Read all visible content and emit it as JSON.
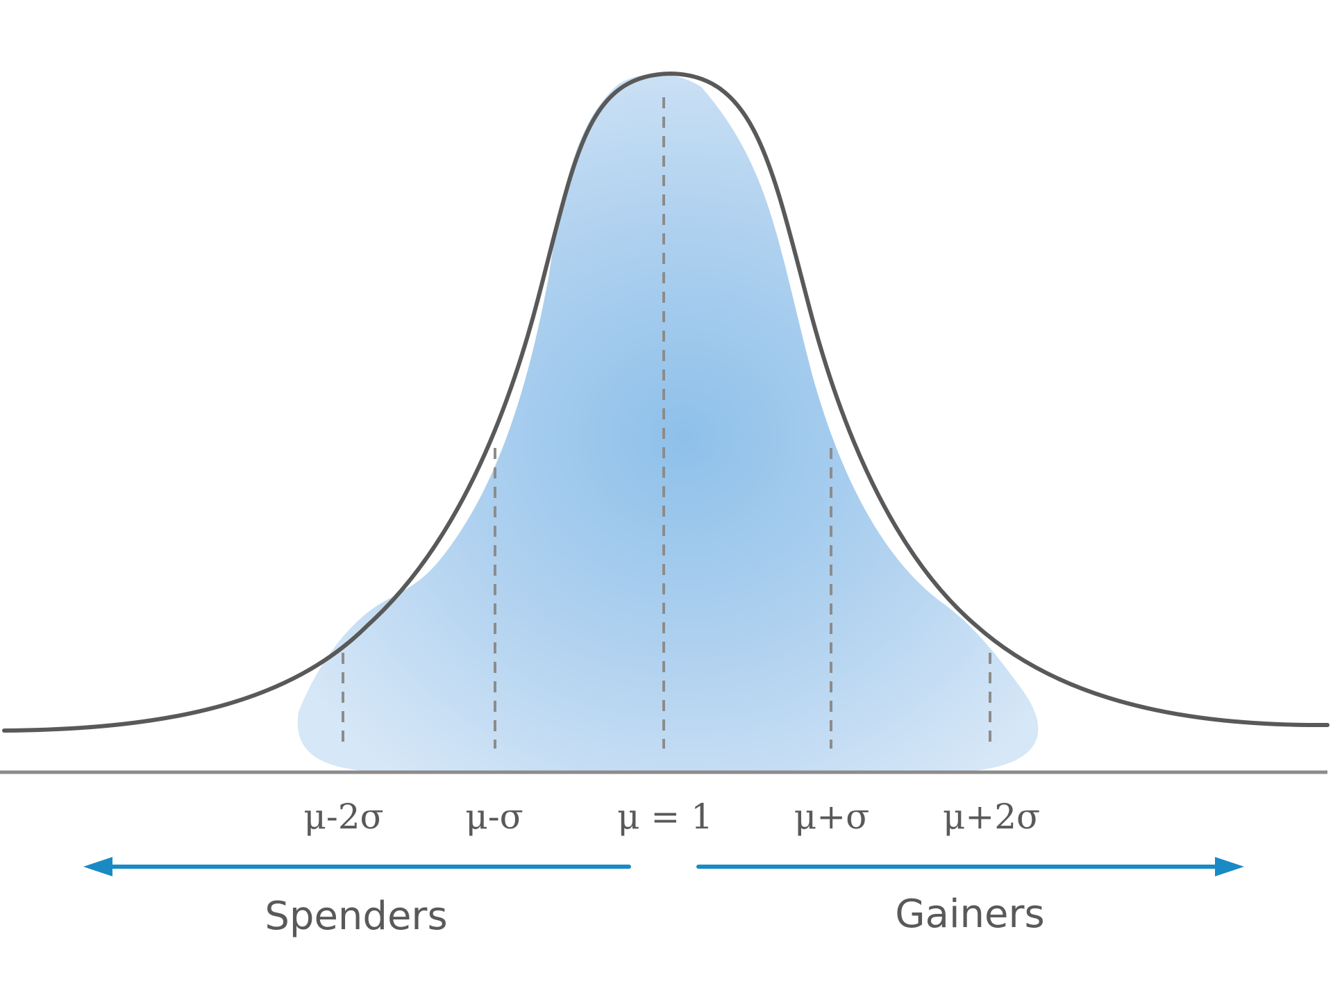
{
  "diagram": {
    "type": "normal-distribution",
    "curve_color": "#595959",
    "fill_color": "#8ec0ea",
    "baseline_color": "#8c8c8c",
    "guide_color": "#8c8c8c",
    "arrow_color": "#1a8ac4",
    "ticks": [
      {
        "id": "mu-minus-2sigma",
        "label": "μ-2σ",
        "offset": -2
      },
      {
        "id": "mu-minus-sigma",
        "label": "μ-σ",
        "offset": -1
      },
      {
        "id": "mu-center",
        "label": "μ = 1",
        "offset": 0
      },
      {
        "id": "mu-plus-sigma",
        "label": "μ+σ",
        "offset": 1
      },
      {
        "id": "mu-plus-2sigma",
        "label": "μ+2σ",
        "offset": 2
      }
    ],
    "left_group": {
      "label": "Spenders",
      "direction": "left"
    },
    "right_group": {
      "label": "Gainers",
      "direction": "right"
    }
  }
}
